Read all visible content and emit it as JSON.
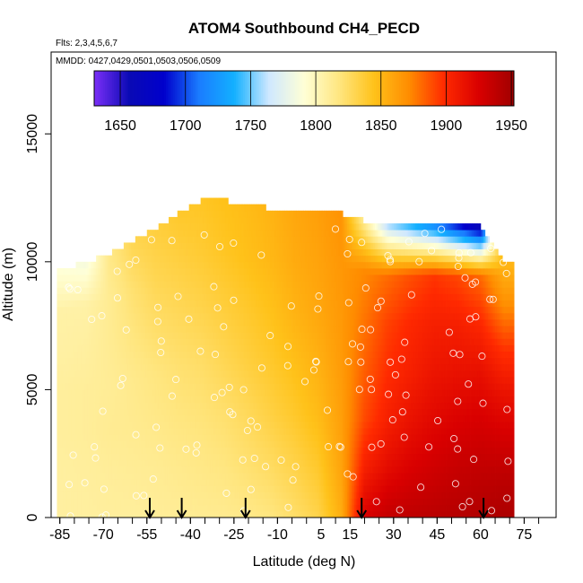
{
  "chart_data": {
    "type": "heatmap",
    "title": "ATOM4 Southbound CH4_PECD",
    "flights_note": "Flts: 2,3,4,5,6,7",
    "dates_note": "MMDD: 0427,0429,0501,0503,0506,0509",
    "xlabel": "Latitude (deg N)",
    "ylabel": "Altitude (m)",
    "xlim": [
      -88,
      86
    ],
    "ylim": [
      0,
      18200
    ],
    "x_ticks": [
      -85,
      -70,
      -55,
      -40,
      -25,
      -10,
      5,
      15,
      30,
      45,
      60,
      75
    ],
    "y_ticks": [
      0,
      5000,
      10000,
      15000
    ],
    "colorbar": {
      "min": 1630,
      "max": 1952,
      "ticks": [
        1650,
        1700,
        1750,
        1800,
        1850,
        1900,
        1950
      ],
      "colors": [
        "#7b2ff7",
        "#0a0ab5",
        "#0000cc",
        "#1a7cff",
        "#13b0ff",
        "#cfe8ff",
        "#ffffd6",
        "#ffe680",
        "#ffc21a",
        "#ff8c00",
        "#ff2a00",
        "#d90000",
        "#a00000"
      ]
    },
    "arrows_lat": [
      -54,
      -43,
      -21,
      19,
      61
    ],
    "columns": [
      {
        "lat": -84,
        "top": 9700,
        "v": [
          1808,
          1808,
          1809,
          1809,
          1807,
          1806,
          1790
        ]
      },
      {
        "lat": -76,
        "top": 10000,
        "v": [
          1808,
          1809,
          1810,
          1810,
          1808,
          1806,
          1785
        ]
      },
      {
        "lat": -68,
        "top": 10300,
        "v": [
          1809,
          1810,
          1812,
          1811,
          1812,
          1812,
          1815
        ]
      },
      {
        "lat": -60,
        "top": 10800,
        "v": [
          1809,
          1811,
          1813,
          1814,
          1818,
          1822,
          1830
        ]
      },
      {
        "lat": -52,
        "top": 11300,
        "v": [
          1810,
          1812,
          1815,
          1818,
          1824,
          1830,
          1835
        ]
      },
      {
        "lat": -44,
        "top": 11900,
        "v": [
          1811,
          1814,
          1818,
          1822,
          1828,
          1834,
          1840
        ]
      },
      {
        "lat": -36,
        "top": 12400,
        "v": [
          1812,
          1816,
          1820,
          1825,
          1832,
          1838,
          1842
        ]
      },
      {
        "lat": -28,
        "top": 12400,
        "v": [
          1813,
          1818,
          1823,
          1830,
          1836,
          1842,
          1845
        ]
      },
      {
        "lat": -20,
        "top": 12200,
        "v": [
          1815,
          1822,
          1828,
          1835,
          1840,
          1846,
          1848
        ]
      },
      {
        "lat": -12,
        "top": 12100,
        "v": [
          1818,
          1826,
          1834,
          1840,
          1845,
          1850,
          1852
        ]
      },
      {
        "lat": -4,
        "top": 12000,
        "v": [
          1824,
          1832,
          1840,
          1846,
          1852,
          1856,
          1858
        ]
      },
      {
        "lat": 4,
        "top": 12000,
        "v": [
          1832,
          1840,
          1848,
          1853,
          1858,
          1860,
          1862
        ]
      },
      {
        "lat": 12,
        "top": 11900,
        "v": [
          1855,
          1860,
          1862,
          1864,
          1865,
          1866,
          1868
        ]
      },
      {
        "lat": 20,
        "top": 11600,
        "v": [
          1925,
          1905,
          1890,
          1884,
          1878,
          1872,
          1810
        ]
      },
      {
        "lat": 28,
        "top": 11400,
        "v": [
          1935,
          1918,
          1905,
          1898,
          1892,
          1880,
          1760
        ]
      },
      {
        "lat": 36,
        "top": 11400,
        "v": [
          1938,
          1925,
          1914,
          1905,
          1900,
          1888,
          1740
        ]
      },
      {
        "lat": 44,
        "top": 11400,
        "v": [
          1940,
          1930,
          1920,
          1912,
          1905,
          1895,
          1720
        ]
      },
      {
        "lat": 52,
        "top": 11400,
        "v": [
          1942,
          1934,
          1924,
          1914,
          1905,
          1890,
          1690
        ]
      },
      {
        "lat": 60,
        "top": 11400,
        "v": [
          1944,
          1936,
          1926,
          1915,
          1900,
          1880,
          1660
        ]
      },
      {
        "lat": 68,
        "top": 10000,
        "v": [
          1946,
          1938,
          1926,
          1912,
          1895,
          1870,
          1850
        ]
      }
    ]
  }
}
